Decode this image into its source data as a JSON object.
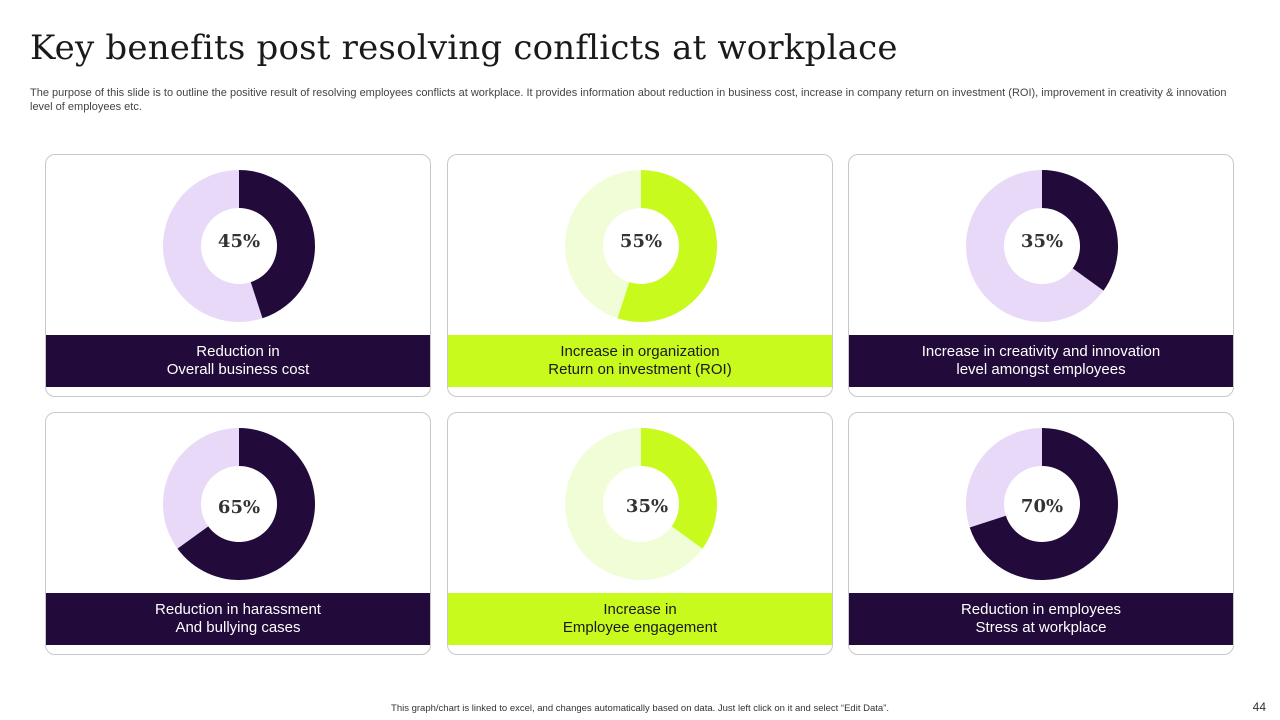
{
  "header": {
    "title": "Key benefits post resolving conflicts at workplace",
    "description": "The purpose of this slide is to outline the positive result of resolving employees conflicts at workplace. It provides information about reduction in business cost, increase in company return on investment (ROI), improvement in creativity & innovation level of employees etc."
  },
  "colors": {
    "dark": "#220a3a",
    "dark_light": "#e8d9f8",
    "lime": "#c8fa1e",
    "lime_light": "#f1fdd6"
  },
  "chart_data": [
    {
      "type": "pie",
      "title": "Reduction in Overall business cost",
      "theme": "dark",
      "label_lines": [
        "Reduction in",
        "Overall business cost"
      ],
      "value": 45,
      "value_label": "45%"
    },
    {
      "type": "pie",
      "title": "Increase in organization Return on investment (ROI)",
      "theme": "lime",
      "label_lines": [
        "Increase in organization",
        "Return on investment (ROI)"
      ],
      "value": 55,
      "value_label": "55%"
    },
    {
      "type": "pie",
      "title": "Increase in creativity and innovation level amongst employees",
      "theme": "dark",
      "label_lines": [
        "Increase in creativity and innovation",
        "level amongst employees"
      ],
      "value": 35,
      "value_label": "35%"
    },
    {
      "type": "pie",
      "title": "Reduction in harassment And bullying cases",
      "theme": "dark",
      "label_lines": [
        "Reduction in harassment",
        "And bullying cases"
      ],
      "value": 65,
      "value_label": "65%"
    },
    {
      "type": "pie",
      "title": "Increase in Employee engagement",
      "theme": "lime",
      "label_lines": [
        "Increase in",
        "Employee engagement"
      ],
      "value": 35,
      "value_label": "35%"
    },
    {
      "type": "pie",
      "title": "Reduction in employees Stress at workplace",
      "theme": "dark",
      "label_lines": [
        "Reduction in employees",
        "Stress at workplace"
      ],
      "value": 70,
      "value_label": "70%"
    }
  ],
  "footer": {
    "note": "This graph/chart is linked to excel, and changes automatically based on data. Just left click on it and select “Edit Data”.",
    "page_number": "44"
  }
}
